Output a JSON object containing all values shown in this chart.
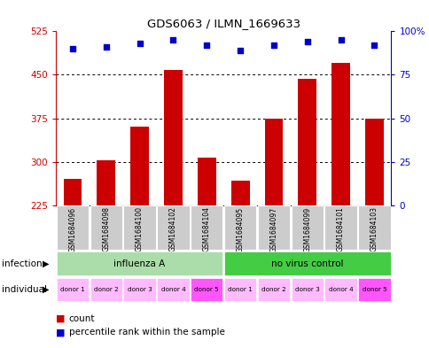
{
  "title": "GDS6063 / ILMN_1669633",
  "samples": [
    "GSM1684096",
    "GSM1684098",
    "GSM1684100",
    "GSM1684102",
    "GSM1684104",
    "GSM1684095",
    "GSM1684097",
    "GSM1684099",
    "GSM1684101",
    "GSM1684103"
  ],
  "counts": [
    270,
    302,
    360,
    458,
    308,
    268,
    375,
    443,
    470,
    375
  ],
  "percentiles": [
    90,
    91,
    93,
    95,
    92,
    89,
    92,
    94,
    95,
    92
  ],
  "ylim_left": [
    225,
    525
  ],
  "yticks_left": [
    225,
    300,
    375,
    450,
    525
  ],
  "ylim_right": [
    0,
    100
  ],
  "yticks_right": [
    0,
    25,
    50,
    75,
    100
  ],
  "ytick_labels_right": [
    "0",
    "25",
    "50",
    "75",
    "100%"
  ],
  "bar_color": "#cc0000",
  "dot_color": "#0000cc",
  "grid_color": "#000000",
  "infection_colors": [
    "#aaddaa",
    "#44cc44"
  ],
  "individual_colors_alt": [
    "#ffaaff",
    "#ff66ff"
  ],
  "sample_bg_color": "#cccccc",
  "left_axis_color": "#cc0000",
  "right_axis_color": "#0000cc",
  "legend_items": [
    "count",
    "percentile rank within the sample"
  ],
  "legend_colors": [
    "#cc0000",
    "#0000cc"
  ],
  "individual_labels": [
    "donor 1",
    "donor 2",
    "donor 3",
    "donor 4",
    "donor 5",
    "donor 1",
    "donor 2",
    "donor 3",
    "donor 4",
    "donor 5"
  ]
}
